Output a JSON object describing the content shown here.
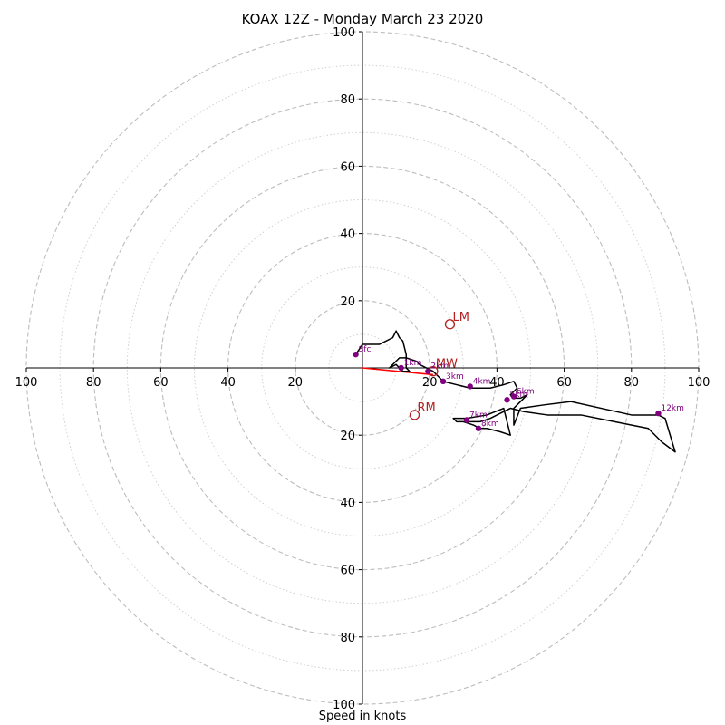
{
  "chart_data": {
    "type": "hodograph",
    "title": "KOAX 12Z - Monday March 23 2020",
    "xlabel": "Speed in knots",
    "axis_range": [
      -100,
      100
    ],
    "rings_major": [
      20,
      40,
      60,
      80,
      100
    ],
    "rings_minor": [
      10,
      30,
      50,
      70,
      90
    ],
    "x_ticks": [
      "100",
      "80",
      "60",
      "40",
      "20",
      "20",
      "40",
      "60",
      "80",
      "100"
    ],
    "x_tick_values": [
      -100,
      -80,
      -60,
      -40,
      -20,
      20,
      40,
      60,
      80,
      100
    ],
    "y_ticks": [
      "100",
      "80",
      "60",
      "40",
      "20",
      "20",
      "40",
      "60",
      "80",
      "100"
    ],
    "y_tick_values": [
      100,
      80,
      60,
      40,
      20,
      -20,
      -40,
      -60,
      -80,
      -100
    ],
    "trace": [
      [
        -2,
        4
      ],
      [
        0,
        7
      ],
      [
        5,
        7
      ],
      [
        9,
        9
      ],
      [
        10,
        11
      ],
      [
        11,
        9
      ],
      [
        12,
        8
      ],
      [
        13,
        4
      ],
      [
        13,
        0
      ],
      [
        14,
        -1
      ],
      [
        12,
        -1
      ],
      [
        10,
        1
      ],
      [
        8,
        0
      ],
      [
        11,
        3
      ],
      [
        13,
        3
      ],
      [
        16,
        2
      ],
      [
        17,
        1
      ],
      [
        19,
        0
      ],
      [
        21,
        -1
      ],
      [
        23,
        -3
      ],
      [
        24,
        -4
      ],
      [
        28,
        -5
      ],
      [
        32,
        -6
      ],
      [
        38,
        -6
      ],
      [
        42,
        -5
      ],
      [
        45,
        -4
      ],
      [
        46,
        -6
      ],
      [
        44,
        -8
      ],
      [
        45,
        -9
      ],
      [
        47,
        -9
      ],
      [
        49,
        -8
      ],
      [
        46,
        -11
      ],
      [
        45,
        -12
      ],
      [
        45,
        -17
      ],
      [
        47,
        -12
      ],
      [
        54,
        -11
      ],
      [
        62,
        -10
      ],
      [
        80,
        -14
      ],
      [
        88,
        -14
      ],
      [
        90,
        -15
      ],
      [
        93,
        -25
      ],
      [
        89,
        -22
      ],
      [
        85,
        -18
      ],
      [
        75,
        -16
      ],
      [
        65,
        -14
      ],
      [
        55,
        -14
      ],
      [
        48,
        -13
      ],
      [
        44,
        -12
      ],
      [
        42,
        -13
      ],
      [
        38,
        -15
      ],
      [
        35,
        -16
      ],
      [
        32,
        -16
      ],
      [
        28,
        -16
      ],
      [
        27,
        -15
      ],
      [
        31,
        -15
      ],
      [
        37,
        -14
      ],
      [
        42,
        -12
      ],
      [
        44,
        -20
      ],
      [
        41,
        -19
      ],
      [
        37,
        -18
      ],
      [
        35,
        -18
      ],
      [
        33,
        -17
      ],
      [
        30,
        -16
      ]
    ],
    "shear_vector": {
      "from": [
        0,
        0
      ],
      "to": [
        21,
        -2
      ]
    },
    "levels": [
      {
        "label": "Sfc",
        "u": -2,
        "v": 4
      },
      {
        "label": "1km",
        "u": 11.5,
        "v": 0
      },
      {
        "label": "2km",
        "u": 19.5,
        "v": -1
      },
      {
        "label": "3km",
        "u": 24,
        "v": -4
      },
      {
        "label": "4km",
        "u": 32,
        "v": -5.5
      },
      {
        "label": "5km",
        "u": 43,
        "v": -9.5
      },
      {
        "label": "6km",
        "u": 45,
        "v": -8.5
      },
      {
        "label": "7km",
        "u": 31,
        "v": -15.5
      },
      {
        "label": "8km",
        "u": 34.5,
        "v": -18
      },
      {
        "label": "12km",
        "u": 88,
        "v": -13.5
      }
    ],
    "storm_motion": [
      {
        "label": "LM",
        "u": 26,
        "v": 13
      },
      {
        "label": "MW",
        "u": 21,
        "v": -1
      },
      {
        "label": "RM",
        "u": 15.5,
        "v": -14
      }
    ],
    "colors": {
      "trace": "#000000",
      "shear": "#ff0000",
      "levels": "#800080",
      "motion": "#b22222",
      "rings": "#bdbdbd",
      "axis": "#000000"
    }
  }
}
